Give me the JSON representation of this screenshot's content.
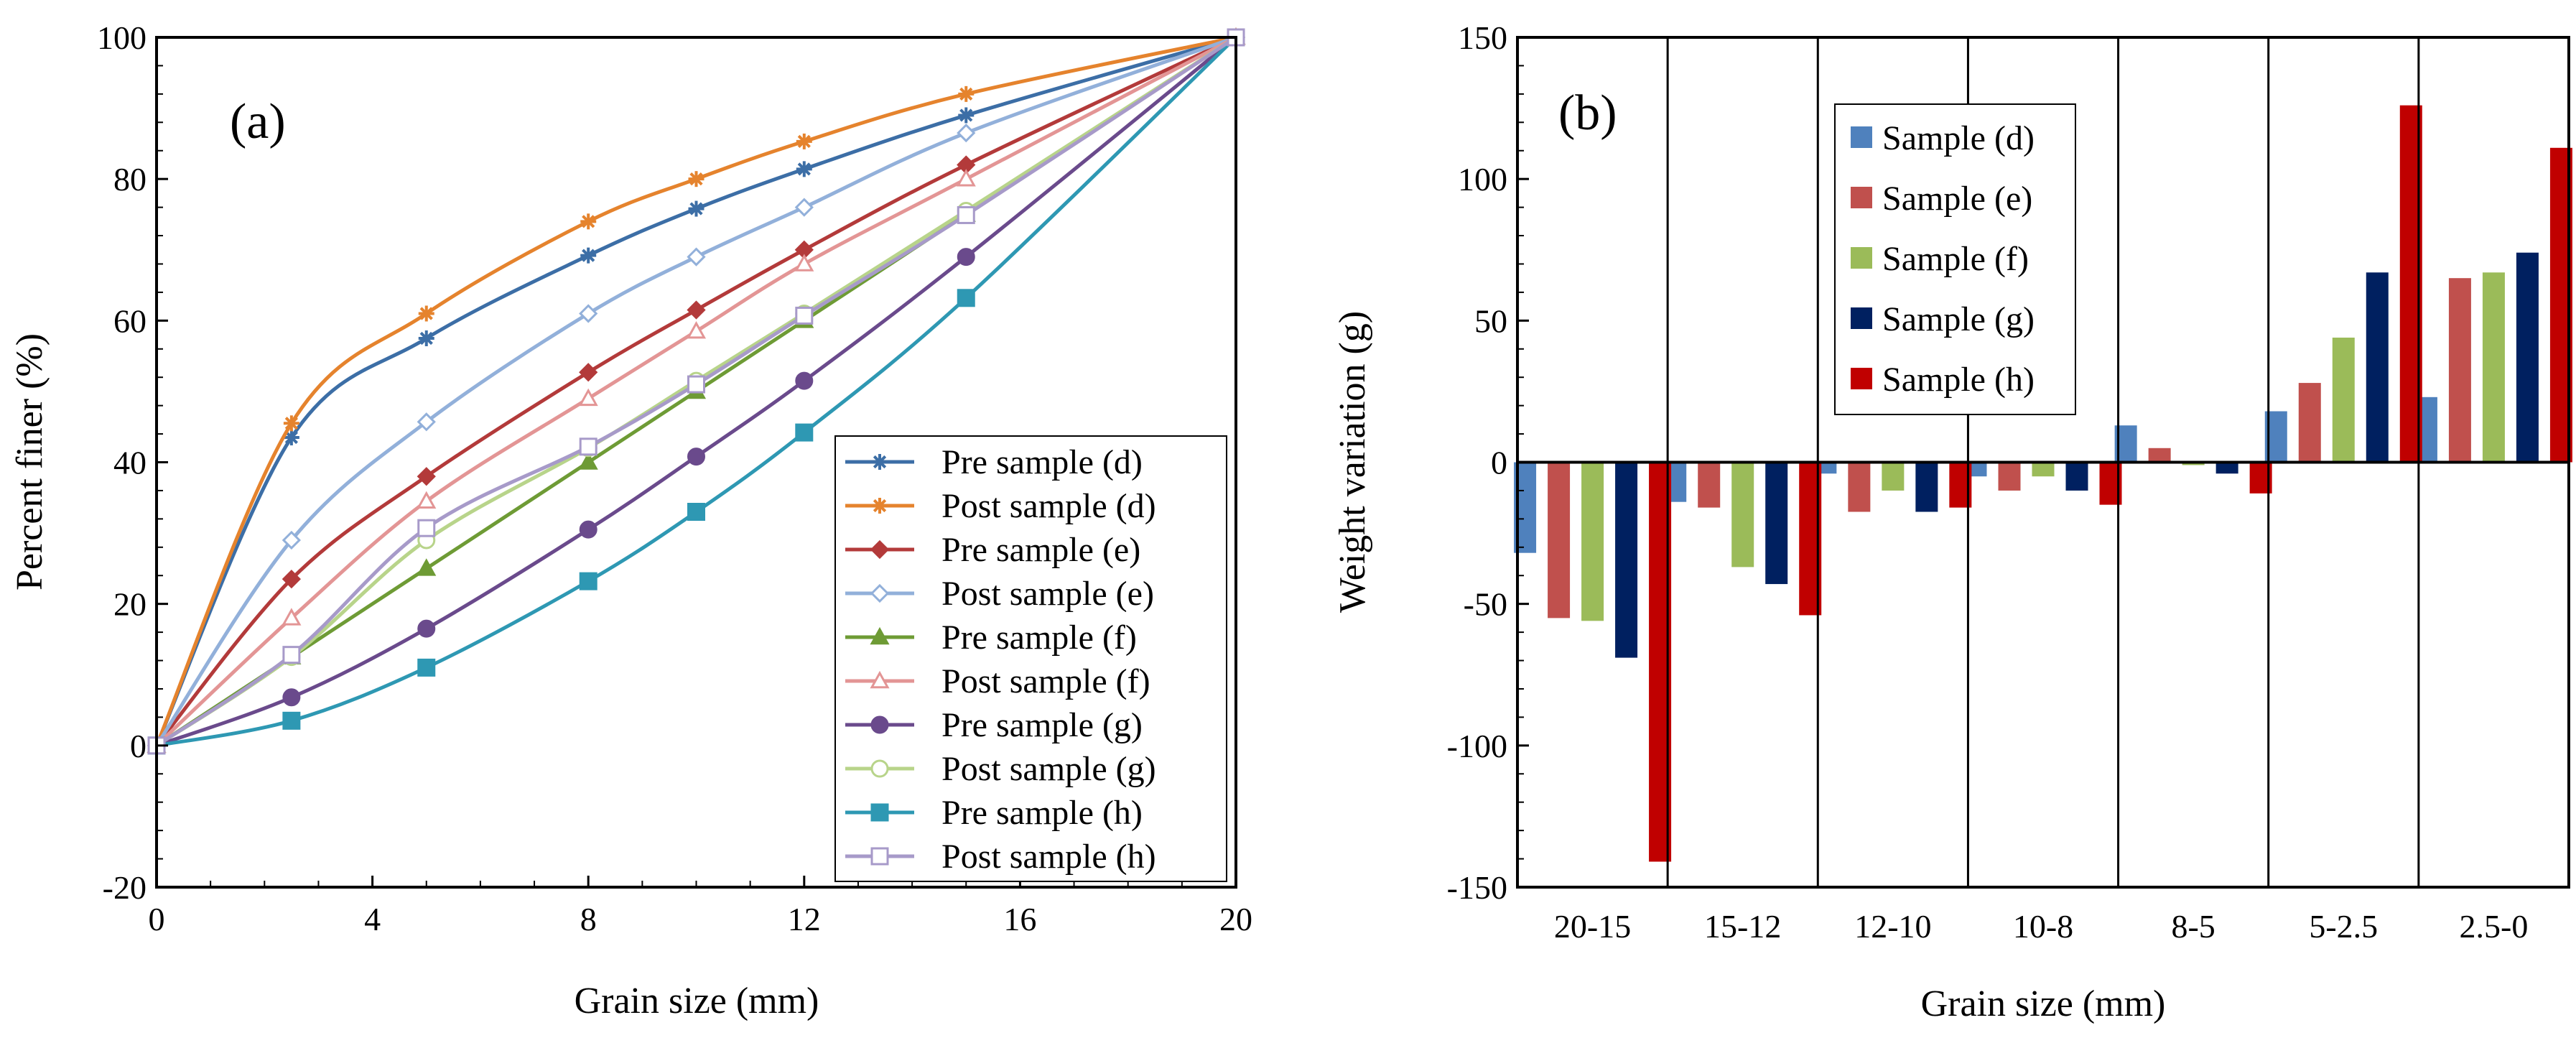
{
  "chart_data": [
    {
      "panel": "(a)",
      "type": "line",
      "xlabel": "Grain size (mm)",
      "ylabel": "Percent finer (%)",
      "xlim": [
        0,
        20
      ],
      "ylim": [
        -20,
        100
      ],
      "xticks": [
        "0",
        "4",
        "8",
        "12",
        "16",
        "20"
      ],
      "yticks": [
        "-20",
        "0",
        "20",
        "40",
        "60",
        "80",
        "100"
      ],
      "legend_position": "bottom-right",
      "x": [
        0,
        2.5,
        5,
        8,
        10,
        12,
        15,
        20
      ],
      "series": [
        {
          "name": "Pre sample (d)",
          "color": "#3C6EA6",
          "marker": "star",
          "values": [
            0,
            43.5,
            57.5,
            69.2,
            75.8,
            81.4,
            89,
            100
          ]
        },
        {
          "name": "Post sample (d)",
          "color": "#E5832D",
          "marker": "star",
          "values": [
            0,
            45.5,
            61,
            74,
            80,
            85.3,
            92,
            100
          ]
        },
        {
          "name": "Pre sample (e)",
          "color": "#B33A3A",
          "marker": "diamond",
          "values": [
            0,
            23.5,
            38,
            52.7,
            61.5,
            70,
            82,
            100
          ]
        },
        {
          "name": "Post sample (e)",
          "color": "#92B0DA",
          "marker": "diamond-open",
          "values": [
            0,
            29,
            45.7,
            61,
            69,
            76,
            86.5,
            100
          ]
        },
        {
          "name": "Pre sample (f)",
          "color": "#6E9B35",
          "marker": "triangle",
          "values": [
            0,
            12.5,
            25,
            40,
            50,
            60,
            75,
            100
          ]
        },
        {
          "name": "Post sample (f)",
          "color": "#E39595",
          "marker": "triangle-open",
          "values": [
            0,
            18,
            34.5,
            49,
            58.5,
            68,
            80,
            100
          ]
        },
        {
          "name": "Pre sample (g)",
          "color": "#6A4A8C",
          "marker": "circle",
          "values": [
            0,
            6.8,
            16.5,
            30.5,
            40.8,
            51.5,
            69,
            100
          ]
        },
        {
          "name": "Post sample (g)",
          "color": "#B8D48A",
          "marker": "circle-open",
          "values": [
            0,
            12.5,
            29,
            42,
            51.5,
            61,
            75.5,
            100
          ]
        },
        {
          "name": "Pre sample (h)",
          "color": "#2E98B3",
          "marker": "square",
          "values": [
            0,
            3.5,
            11,
            23.2,
            33,
            44.2,
            63.2,
            100
          ]
        },
        {
          "name": "Post sample (h)",
          "color": "#A79AC9",
          "marker": "square-open",
          "values": [
            0,
            12.8,
            30.7,
            42.2,
            51,
            60.7,
            74.9,
            100
          ]
        }
      ]
    },
    {
      "panel": "(b)",
      "type": "bar",
      "xlabel": "Grain size (mm)",
      "ylabel": "Weight variation (g)",
      "ylim": [
        -150,
        150
      ],
      "yticks": [
        "-150",
        "-100",
        "-50",
        "0",
        "50",
        "100",
        "150"
      ],
      "legend_position": "top-center",
      "categories": [
        "20-15",
        "15-12",
        "12-10",
        "10-8",
        "8-5",
        "5-2.5",
        "2.5-0"
      ],
      "series": [
        {
          "name": "Sample (d)",
          "color": "#4F81BD",
          "values": [
            -32,
            -14,
            -4,
            -5,
            13,
            18,
            23
          ]
        },
        {
          "name": "Sample (e)",
          "color": "#C0504D",
          "values": [
            -55,
            -16,
            -17.5,
            -10,
            5,
            28,
            65
          ]
        },
        {
          "name": "Sample (f)",
          "color": "#9BBB59",
          "values": [
            -56,
            -37,
            -10,
            -5,
            -1,
            44,
            67
          ]
        },
        {
          "name": "Sample (g)",
          "color": "#002060",
          "values": [
            -69,
            -43,
            -17.5,
            -10,
            -4,
            67,
            74
          ]
        },
        {
          "name": "Sample (h)",
          "color": "#C00000",
          "values": [
            -141,
            -54,
            -16,
            -15,
            -11,
            126,
            111
          ]
        }
      ]
    }
  ]
}
